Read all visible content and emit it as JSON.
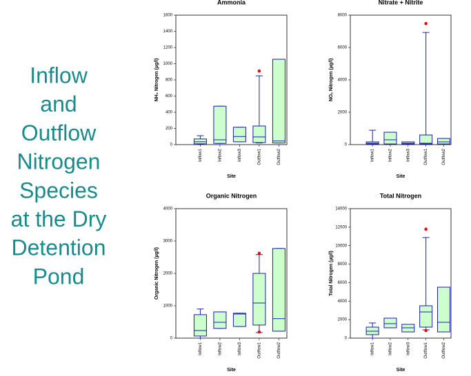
{
  "title_lines": [
    "Inflow",
    "and",
    "Outflow",
    "Nitrogen",
    "Species",
    "at the Dry",
    "Detention",
    "Pond"
  ],
  "title_color": "#1a8a8a",
  "chart_data": [
    {
      "type": "box",
      "title": "Ammonia",
      "x_label": "Site",
      "y_label": "NH₃ Nitrogen (µg/l)",
      "categories": [
        "Inflow1",
        "Inflow2",
        "Inflow3",
        "Outflow1",
        "Outflow2"
      ],
      "min": [
        5,
        15,
        35,
        20,
        20
      ],
      "q1": [
        10,
        15,
        35,
        25,
        20
      ],
      "median": [
        35,
        60,
        100,
        95,
        45
      ],
      "q3": [
        70,
        475,
        215,
        230,
        1055
      ],
      "max": [
        110,
        475,
        215,
        850,
        1055
      ],
      "outliers": [
        [],
        [],
        [],
        [
          910
        ],
        []
      ],
      "box_color": "#ccffcc",
      "line_color": "#1c1caa",
      "outlier_color": "#e01010",
      "ylim": [
        0,
        1600
      ],
      "yticks": [
        0,
        200,
        400,
        600,
        800,
        1000,
        1200,
        1400,
        1600
      ]
    },
    {
      "type": "box",
      "title": "Nitrate + Nitrite",
      "x_label": "Site",
      "y_label": "NOₓ Nitrogen (µg/l)",
      "categories": [
        "Inflow1",
        "Inflow2",
        "Inflow3",
        "Outflow1",
        "Outflow2"
      ],
      "min": [
        40,
        40,
        40,
        40,
        40
      ],
      "q1": [
        40,
        40,
        40,
        40,
        40
      ],
      "median": [
        85,
        300,
        85,
        85,
        170
      ],
      "q3": [
        170,
        765,
        170,
        595,
        380
      ],
      "max": [
        890,
        765,
        170,
        6930,
        380
      ],
      "outliers": [
        [],
        [],
        [],
        [
          7480
        ],
        []
      ],
      "box_color": "#ccffcc",
      "line_color": "#1c1caa",
      "outlier_color": "#e01010",
      "ylim": [
        0,
        8000
      ],
      "yticks": [
        0,
        2000,
        4000,
        6000,
        8000
      ]
    },
    {
      "type": "box",
      "title": "Organic Nitrogen",
      "x_label": "Site",
      "y_label": "Organic Nitrogen (µg/l)",
      "categories": [
        "Inflow1",
        "Inflow2",
        "Inflow3",
        "Outflow1",
        "Outflow2"
      ],
      "min": [
        0,
        300,
        360,
        170,
        215
      ],
      "q1": [
        65,
        300,
        360,
        405,
        215
      ],
      "median": [
        235,
        490,
        745,
        1085,
        600
      ],
      "q3": [
        725,
        810,
        770,
        2000,
        2770
      ],
      "max": [
        900,
        810,
        770,
        2580,
        2770
      ],
      "outliers": [
        [],
        [],
        [],
        [
          2620,
          190
        ],
        []
      ],
      "box_color": "#ccffcc",
      "line_color": "#1c1caa",
      "outlier_color": "#e01010",
      "ylim": [
        0,
        4000
      ],
      "yticks": [
        0,
        1000,
        2000,
        3000,
        4000
      ]
    },
    {
      "type": "box",
      "title": "Total Nitrogen",
      "x_label": "Site",
      "y_label": "Total Nitrogen (µg/l)",
      "categories": [
        "Inflow1",
        "Inflow2",
        "Inflow3",
        "Outflow1",
        "Outflow2"
      ],
      "min": [
        0,
        1120,
        670,
        895,
        670
      ],
      "q1": [
        375,
        1120,
        670,
        1190,
        670
      ],
      "median": [
        745,
        1565,
        1120,
        2830,
        1710
      ],
      "q3": [
        1190,
        2160,
        1490,
        3500,
        5510
      ],
      "max": [
        1640,
        2160,
        1490,
        10880,
        5510
      ],
      "outliers": [
        [],
        [],
        [],
        [
          11780,
          820
        ],
        []
      ],
      "box_color": "#ccffcc",
      "line_color": "#1c1caa",
      "outlier_color": "#e01010",
      "ylim": [
        0,
        14000
      ],
      "yticks": [
        0,
        2000,
        4000,
        6000,
        8000,
        10000,
        12000,
        14000
      ]
    }
  ]
}
